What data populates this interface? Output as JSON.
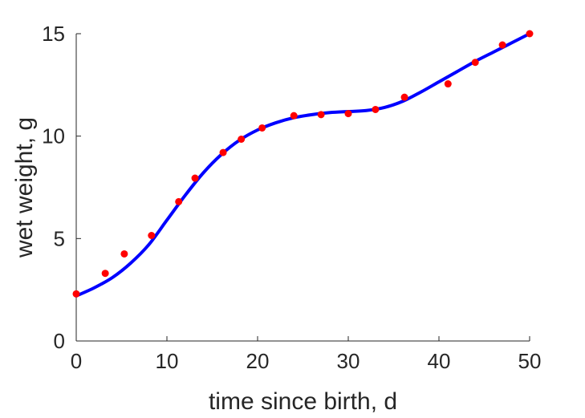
{
  "chart_data": {
    "type": "scatter",
    "xlabel": "time since birth, d",
    "ylabel": "wet weight, g",
    "xlim": [
      0,
      50
    ],
    "ylim": [
      0,
      15
    ],
    "xticks": [
      "0",
      "10",
      "20",
      "30",
      "40",
      "50"
    ],
    "yticks": [
      "0",
      "5",
      "10",
      "15"
    ],
    "grid": false,
    "series": [
      {
        "kind": "points",
        "color": "#ff0000",
        "x": [
          0,
          3.2,
          5.3,
          8.3,
          11.3,
          13.1,
          16.2,
          18.2,
          20.5,
          24.0,
          27.0,
          30.0,
          33.0,
          36.2,
          41.0,
          44.0,
          47.0,
          50.0
        ],
        "y": [
          2.3,
          3.3,
          4.25,
          5.15,
          6.8,
          7.95,
          9.2,
          9.85,
          10.4,
          11.0,
          11.05,
          11.1,
          11.3,
          11.9,
          12.55,
          13.6,
          14.45,
          15.0
        ]
      },
      {
        "kind": "line",
        "color": "#0000ff",
        "x": [
          0,
          2,
          4,
          6,
          8,
          10,
          12,
          14,
          16,
          18,
          20,
          22,
          24,
          26,
          28,
          30,
          32,
          34,
          36,
          38,
          40,
          42,
          44,
          46,
          48,
          50
        ],
        "y": [
          2.2,
          2.6,
          3.1,
          3.8,
          4.7,
          5.9,
          7.1,
          8.2,
          9.1,
          9.8,
          10.3,
          10.65,
          10.9,
          11.05,
          11.15,
          11.2,
          11.25,
          11.4,
          11.7,
          12.15,
          12.65,
          13.15,
          13.65,
          14.1,
          14.55,
          15.0
        ]
      }
    ]
  }
}
